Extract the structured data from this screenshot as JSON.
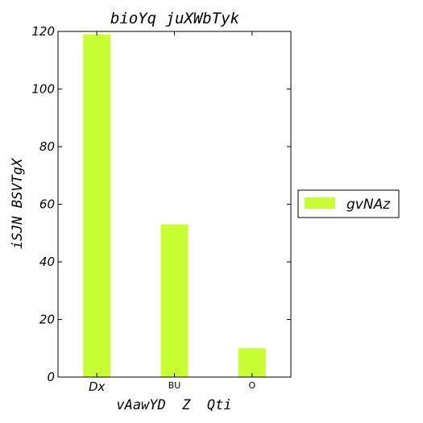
{
  "chart_data": {
    "type": "bar",
    "title": "bioYq juXWbTyk",
    "xlabel": "vAawYD  Z  Qti",
    "ylabel": "iSJN BSVTgX",
    "categories": [
      "Dx",
      "BU",
      "O"
    ],
    "series": [
      {
        "name": "gvNAz",
        "values": [
          119,
          53,
          10
        ],
        "color": "#c8ff32"
      }
    ],
    "ylim": [
      0,
      120
    ],
    "yticks": [
      "0",
      "20",
      "40",
      "60",
      "80",
      "100",
      "120"
    ],
    "grid": false,
    "legend": "outside-right"
  }
}
